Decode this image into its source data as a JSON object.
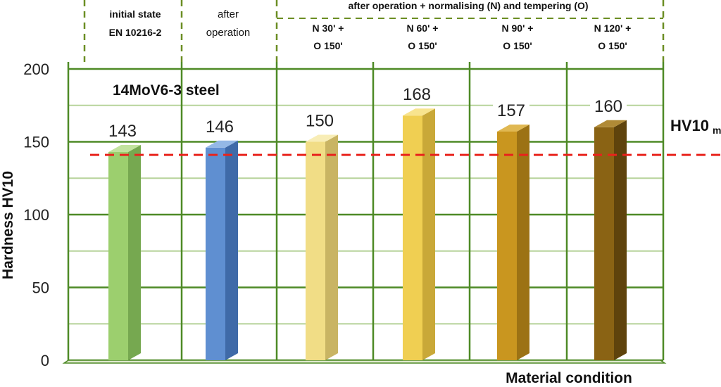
{
  "chart_data": {
    "type": "bar",
    "title": "14MoV6-3 steel",
    "xlabel": "Material condition",
    "ylabel": "Hardness HV10",
    "ylim": [
      0,
      200
    ],
    "yticks": [
      "0",
      "50",
      "100",
      "150",
      "200"
    ],
    "grid": true,
    "group_header": "after operation + normalising (N) and tempering (O)",
    "categories": [
      {
        "line1": "initial state",
        "line2": "EN 10216-2"
      },
      {
        "line1": "after",
        "line2": "operation"
      },
      {
        "line1": "N 30' +",
        "line2": "O 150'"
      },
      {
        "line1": "N 60' +",
        "line2": "O 150'"
      },
      {
        "line1": "N 90' +",
        "line2": "O 150'"
      },
      {
        "line1": "N 120' +",
        "line2": "O 150'"
      }
    ],
    "values": [
      143,
      146,
      150,
      168,
      157,
      160
    ],
    "value_labels": [
      "143",
      "146",
      "150",
      "168",
      "157",
      "160"
    ],
    "bar_colors": [
      {
        "front": "#9ccf6e",
        "side": "#76a850",
        "top": "#c2e39e"
      },
      {
        "front": "#5f8fd1",
        "side": "#3f6aa8",
        "top": "#94b8e6"
      },
      {
        "front": "#f1dd86",
        "side": "#c9b463",
        "top": "#f8edb6"
      },
      {
        "front": "#f0cf52",
        "side": "#c9a838",
        "top": "#f8e48e"
      },
      {
        "front": "#c9961f",
        "side": "#9c7214",
        "top": "#e0b852"
      },
      {
        "front": "#8a6314",
        "side": "#5f430c",
        "top": "#b08a36"
      }
    ],
    "reference_line": {
      "label": "HV10",
      "subscript": "min",
      "value": 141,
      "color": "#e8231c"
    },
    "grid_color": "#4e8a26",
    "header_divider_color": "#6b8e23"
  }
}
